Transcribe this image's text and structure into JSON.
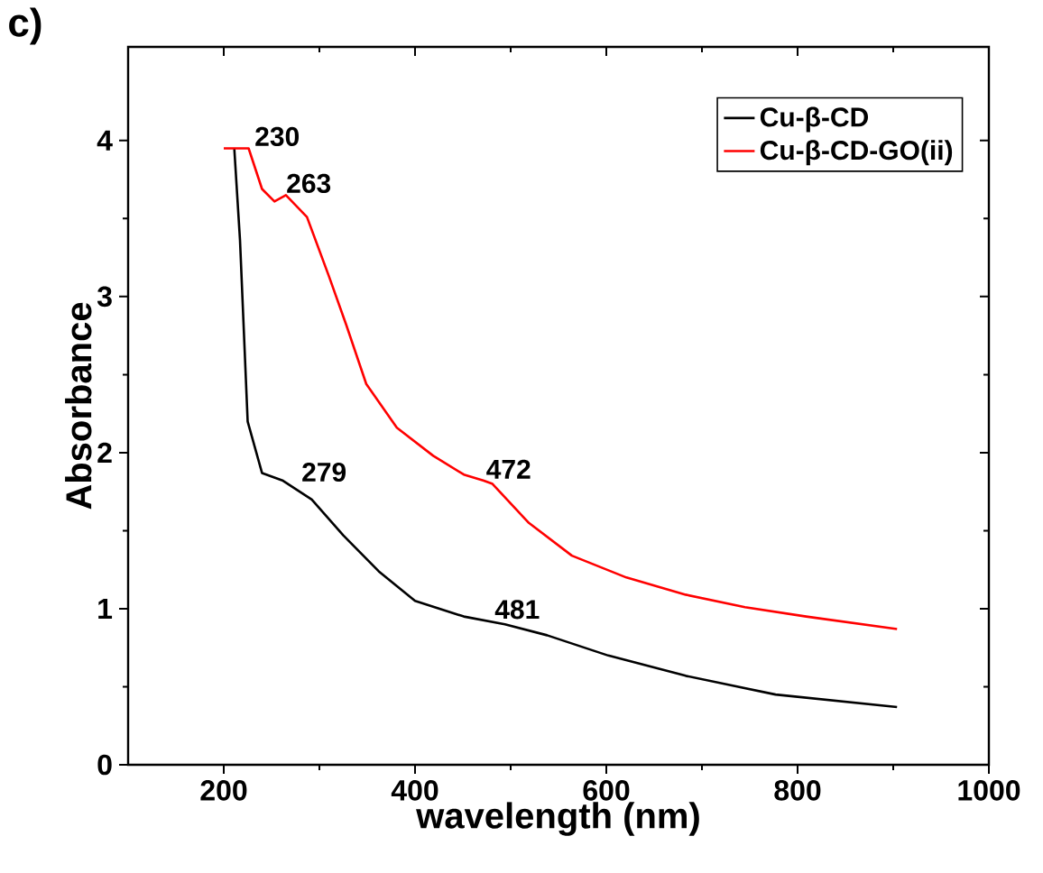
{
  "chart_data": {
    "type": "line",
    "xlabel": "wavelength (nm)",
    "ylabel": "Absorbance",
    "xlim": [
      100,
      1000
    ],
    "ylim": [
      0,
      4.6
    ],
    "xticks": [
      200,
      400,
      600,
      800,
      1000
    ],
    "yticks": [
      0,
      1,
      2,
      3,
      4
    ],
    "legend": "top right",
    "grid": false,
    "marker": "none",
    "line_style": "solid",
    "annotations": [
      "c)",
      {
        "text": "230",
        "x": 230,
        "y": 3.95
      },
      {
        "text": "263",
        "x": 263,
        "y": 3.65
      },
      {
        "text": "279",
        "x": 279,
        "y": 1.8
      },
      {
        "text": "472",
        "x": 472,
        "y": 1.82
      },
      {
        "text": "481",
        "x": 481,
        "y": 0.92
      }
    ],
    "series": [
      {
        "name": "Cu-β-CD",
        "color": "#000000",
        "x": [
          211,
          217,
          225,
          240,
          262,
          292,
          325,
          362,
          400,
          451,
          494,
          538,
          602,
          683,
          777,
          904
        ],
        "values": [
          3.95,
          3.36,
          2.2,
          1.87,
          1.82,
          1.7,
          1.47,
          1.24,
          1.05,
          0.95,
          0.9,
          0.83,
          0.7,
          0.57,
          0.45,
          0.37
        ]
      },
      {
        "name": "Cu-β-CD-GO(ii)",
        "color": "#ff0000",
        "x": [
          200,
          211,
          226,
          240,
          253,
          265,
          287,
          310,
          328,
          349,
          381,
          419,
          451,
          472,
          481,
          519,
          564,
          621,
          683,
          745,
          809,
          904
        ],
        "values": [
          3.95,
          3.95,
          3.95,
          3.69,
          3.61,
          3.65,
          3.51,
          3.13,
          2.82,
          2.44,
          2.16,
          1.98,
          1.86,
          1.82,
          1.8,
          1.55,
          1.34,
          1.2,
          1.09,
          1.01,
          0.95,
          0.87
        ]
      }
    ]
  }
}
